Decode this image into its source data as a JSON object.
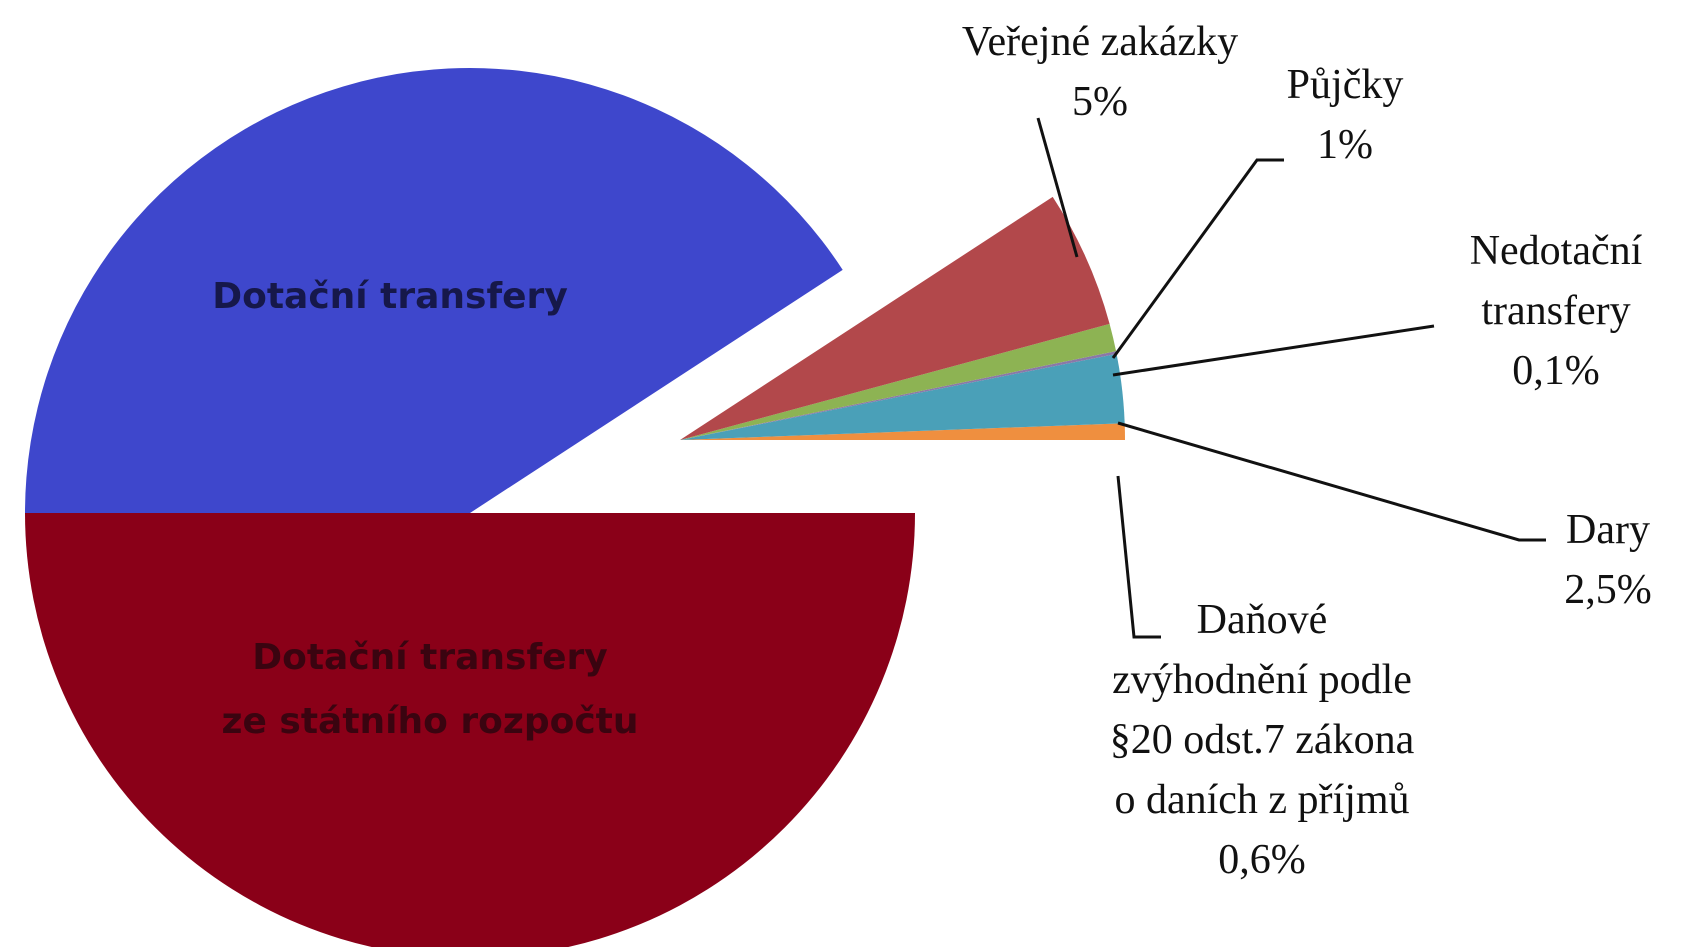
{
  "chart_data": {
    "type": "pie",
    "categories": [
      "Dotační transfery\nze státního rozpočtu",
      "Dotační transfery",
      "Veřejné zakázky",
      "Půjčky",
      "Nedotační\ntransfery",
      "Dary",
      "Daňové\nzvýhodnění podle\n§20 odst.7 zákona\no daních z příjmů"
    ],
    "values": [
      50,
      40.8,
      5,
      1,
      0.1,
      2.5,
      0.6
    ],
    "value_labels": [
      null,
      null,
      "5%",
      "1%",
      "0,1%",
      "2,5%",
      "0,6%"
    ],
    "colors": [
      "#8a0018",
      "#3e47cc",
      "#b2484b",
      "#8db353",
      "#8a78a8",
      "#4aa0b8",
      "#ef8f3f"
    ]
  }
}
